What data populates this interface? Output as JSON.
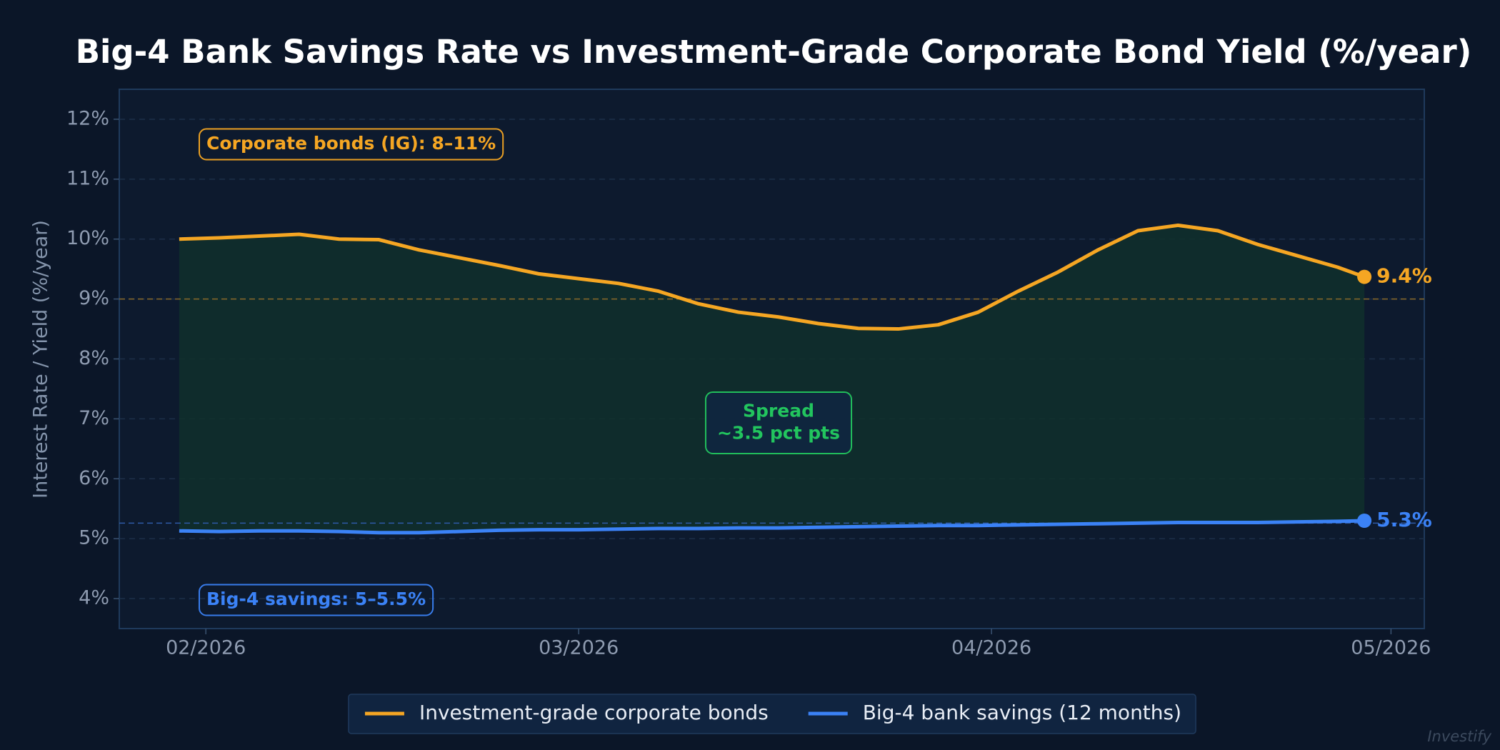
{
  "chart_data": {
    "type": "line",
    "title": "Big-4 Bank Savings Rate vs Investment-Grade Corporate Bond Yield (%/year)",
    "y_label": "Interest Rate / Yield (%/year)",
    "watermark": "Investify",
    "x": [
      0,
      3,
      6,
      9,
      12,
      15,
      18,
      21,
      24,
      27,
      30,
      33,
      36,
      39,
      42,
      45,
      48,
      51,
      54,
      57,
      60,
      63,
      66,
      69,
      72,
      75,
      78,
      81,
      84,
      87,
      89
    ],
    "xlim": [
      -4.5,
      93.5
    ],
    "xticks": [
      {
        "value": 2,
        "label": "02/2026"
      },
      {
        "value": 30,
        "label": "03/2026"
      },
      {
        "value": 61,
        "label": "04/2026"
      },
      {
        "value": 91,
        "label": "05/2026"
      }
    ],
    "ylim": [
      3.5,
      12.5
    ],
    "yticks": [
      {
        "value": 4,
        "label": "4%"
      },
      {
        "value": 5,
        "label": "5%"
      },
      {
        "value": 6,
        "label": "6%"
      },
      {
        "value": 7,
        "label": "7%"
      },
      {
        "value": 8,
        "label": "8%"
      },
      {
        "value": 9,
        "label": "9%"
      },
      {
        "value": 10,
        "label": "10%"
      },
      {
        "value": 11,
        "label": "11%"
      },
      {
        "value": 12,
        "label": "12%"
      }
    ],
    "grid": true,
    "fill_between": true,
    "fill_color": "#10302c",
    "series": [
      {
        "name": "Investment-grade corporate bonds",
        "color": "#f5a623",
        "end_label": "9.4%",
        "values": [
          10.0,
          10.02,
          10.05,
          10.08,
          10.0,
          9.99,
          9.82,
          9.69,
          9.56,
          9.42,
          9.34,
          9.26,
          9.13,
          8.92,
          8.78,
          8.7,
          8.59,
          8.51,
          8.5,
          8.57,
          8.78,
          9.13,
          9.45,
          9.82,
          10.14,
          10.23,
          10.14,
          9.91,
          9.72,
          9.53,
          9.37
        ]
      },
      {
        "name": "Big-4 bank savings (12 months)",
        "color": "#3b82f6",
        "end_label": "5.3%",
        "values": [
          5.13,
          5.12,
          5.13,
          5.13,
          5.12,
          5.1,
          5.1,
          5.12,
          5.14,
          5.15,
          5.15,
          5.16,
          5.17,
          5.17,
          5.18,
          5.18,
          5.19,
          5.2,
          5.21,
          5.22,
          5.22,
          5.23,
          5.24,
          5.25,
          5.26,
          5.27,
          5.27,
          5.27,
          5.28,
          5.29,
          5.3
        ]
      }
    ],
    "reference_lines": [
      {
        "value": 9,
        "color": "#8a6a2a"
      },
      {
        "value": 5.26,
        "color": "#2f5aa8"
      }
    ],
    "annotations": [
      {
        "lines": [
          "Corporate bonds (IG): 8–11%"
        ],
        "color": "#f5a623"
      },
      {
        "lines": [
          "Big-4 savings: 5–5.5%"
        ],
        "color": "#3b82f6"
      },
      {
        "lines": [
          "Spread",
          "~3.5 pct pts"
        ],
        "color": "#22c55e"
      }
    ],
    "legend": "bottom"
  }
}
